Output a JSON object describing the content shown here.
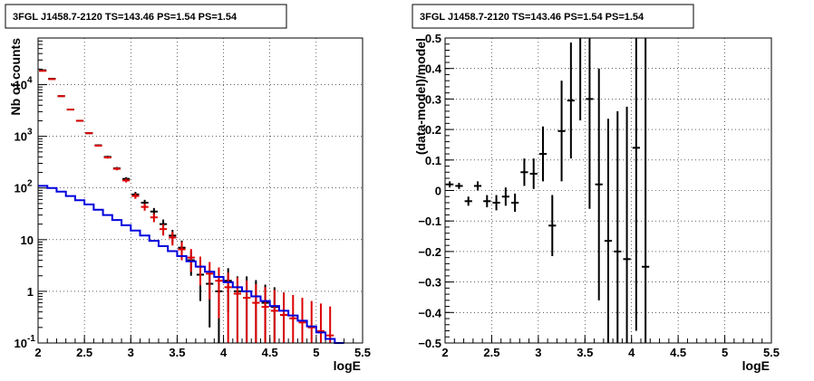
{
  "chart_data": [
    {
      "type": "scatter",
      "title": "3FGL J1458.7-2120 TS=143.46 PS=1.54 PS=1.54",
      "xlabel": "logE",
      "ylabel": "Nb of counts",
      "xlim": [
        2,
        5.5
      ],
      "ylim": [
        0.1,
        80000
      ],
      "yscale": "log",
      "grid": true,
      "x_ticks": [
        "2",
        "2.5",
        "3",
        "3.5",
        "4",
        "4.5",
        "5",
        "5.5"
      ],
      "y_ticks": [
        {
          "value": 0.1,
          "label": "10",
          "exp": "-1"
        },
        {
          "value": 1,
          "label": "1",
          "exp": ""
        },
        {
          "value": 10,
          "label": "10",
          "exp": ""
        },
        {
          "value": 100,
          "label": "10",
          "exp": "2"
        },
        {
          "value": 1000,
          "label": "10",
          "exp": "3"
        },
        {
          "value": 10000,
          "label": "10",
          "exp": "4"
        }
      ],
      "bin_width": 0.1,
      "series": [
        {
          "color": "#000000",
          "style": "points",
          "x": [
            2.05,
            2.15,
            2.25,
            2.35,
            2.45,
            2.55,
            2.65,
            2.75,
            2.85,
            2.95,
            3.05,
            3.15,
            3.25,
            3.35,
            3.45,
            3.55,
            3.65,
            3.75,
            3.85,
            3.95,
            4.05,
            4.15,
            4.25,
            4.35,
            4.45,
            4.55,
            4.65
          ],
          "y": [
            19000,
            13000,
            6000,
            3300,
            2000,
            1150,
            670,
            400,
            240,
            150,
            75,
            52,
            35,
            20,
            12,
            7,
            4,
            2.1,
            1.4,
            1.0,
            1.6,
            1.0,
            1.0,
            0.8,
            0.6,
            0.5,
            0.35
          ],
          "yerr": [
            140,
            115,
            78,
            57,
            45,
            34,
            26,
            20,
            15,
            12,
            9,
            7,
            6,
            4.5,
            3.5,
            2.6,
            2,
            1.45,
            1.2,
            0.95,
            1.2,
            0.95,
            0.95,
            0.85,
            0.75,
            0.7,
            0.6
          ]
        },
        {
          "color": "#dd0000",
          "style": "points",
          "x": [
            2.05,
            2.15,
            2.25,
            2.35,
            2.45,
            2.55,
            2.65,
            2.75,
            2.85,
            2.95,
            3.05,
            3.15,
            3.25,
            3.35,
            3.45,
            3.55,
            3.65,
            3.75,
            3.85,
            3.95,
            4.05,
            4.15,
            4.25,
            4.35,
            4.45,
            4.55,
            4.65,
            4.75,
            4.85,
            4.95,
            5.05,
            5.15
          ],
          "y": [
            18500,
            12800,
            6000,
            3300,
            2000,
            1150,
            660,
            390,
            235,
            140,
            70,
            43,
            27,
            16,
            11,
            6.5,
            4.5,
            3.0,
            2.2,
            1.6,
            1.2,
            0.9,
            0.75,
            0.6,
            0.5,
            0.42,
            0.35,
            0.3,
            0.25,
            0.2,
            0.17,
            0.14
          ],
          "yerr": [
            136,
            113,
            77,
            57,
            45,
            34,
            26,
            20,
            15,
            12,
            8.4,
            6.6,
            5.2,
            4,
            3.3,
            2.5,
            2.1,
            1.7,
            1.5,
            1.3,
            1.1,
            0.95,
            0.87,
            0.77,
            0.71,
            0.65,
            0.59,
            0.55,
            0.5,
            0.45,
            0.41,
            0.37
          ]
        },
        {
          "color": "#0000dd",
          "style": "step",
          "x": [
            2.05,
            2.15,
            2.25,
            2.35,
            2.45,
            2.55,
            2.65,
            2.75,
            2.85,
            2.95,
            3.05,
            3.15,
            3.25,
            3.35,
            3.45,
            3.55,
            3.65,
            3.75,
            3.85,
            3.95,
            4.05,
            4.15,
            4.25,
            4.35,
            4.45,
            4.55,
            4.65,
            4.75,
            4.85,
            4.95,
            5.05,
            5.15,
            5.25
          ],
          "y": [
            110,
            100,
            85,
            70,
            58,
            48,
            38,
            30,
            24,
            19,
            15,
            12,
            9.5,
            7.5,
            6,
            4.8,
            3.8,
            3.0,
            2.4,
            1.9,
            1.5,
            1.2,
            1.0,
            0.8,
            0.65,
            0.52,
            0.42,
            0.34,
            0.27,
            0.21,
            0.16,
            0.12,
            0.1
          ]
        }
      ]
    },
    {
      "type": "scatter",
      "title": "3FGL J1458.7-2120 TS=143.46 PS=1.54 PS=1.54",
      "xlabel": "logE",
      "ylabel": "(data-model)/model",
      "xlim": [
        2,
        5.5
      ],
      "ylim": [
        -0.5,
        0.5
      ],
      "grid": true,
      "x_ticks": [
        "2",
        "2.5",
        "3",
        "3.5",
        "4",
        "4.5",
        "5",
        "5.5"
      ],
      "y_ticks": [
        "-0.5",
        "-0.4",
        "-0.3",
        "-0.2",
        "-0.1",
        "0",
        "0.1",
        "0.2",
        "0.3",
        "0.4",
        "0.5"
      ],
      "bin_width": 0.1,
      "series": [
        {
          "color": "#000000",
          "style": "points",
          "x": [
            2.05,
            2.15,
            2.25,
            2.35,
            2.45,
            2.55,
            2.65,
            2.75,
            2.85,
            2.95,
            3.05,
            3.15,
            3.25,
            3.35,
            3.45,
            3.55,
            3.65,
            3.75,
            3.85,
            3.95,
            4.05,
            4.15
          ],
          "y": [
            0.02,
            0.015,
            -0.035,
            0.015,
            -0.035,
            -0.04,
            -0.02,
            -0.04,
            0.06,
            0.055,
            0.12,
            -0.115,
            0.195,
            0.295,
            0.53,
            0.3,
            0.02,
            -0.165,
            -0.2,
            -0.225,
            0.14,
            -0.25
          ],
          "yerr": [
            0.01,
            0.01,
            0.015,
            0.015,
            0.02,
            0.025,
            0.03,
            0.03,
            0.045,
            0.05,
            0.09,
            0.1,
            0.165,
            0.19,
            0.3,
            0.36,
            0.38,
            0.4,
            0.46,
            0.5,
            0.6,
            0.75
          ]
        }
      ]
    }
  ]
}
